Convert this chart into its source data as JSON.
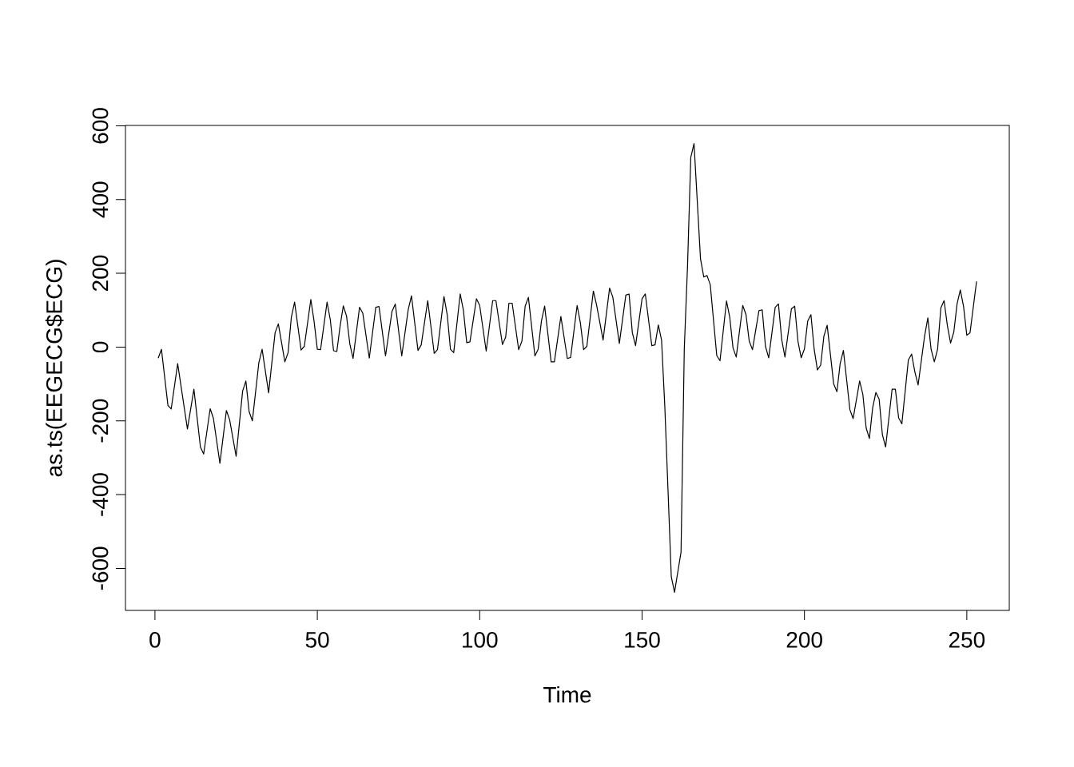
{
  "chart_data": {
    "type": "line",
    "xlabel": "Time",
    "ylabel": "as.ts(EEGECG$ECG)",
    "color": "#000000",
    "line_style": "solid",
    "x": [
      1,
      2,
      4,
      5,
      7,
      10,
      12,
      14,
      15,
      17,
      18,
      20,
      22,
      23,
      25,
      27,
      28,
      29,
      30,
      32,
      33,
      35,
      37,
      38,
      40,
      41,
      42,
      43,
      45,
      46,
      48,
      49,
      50,
      51,
      53,
      54,
      55,
      56,
      57,
      58,
      59,
      60,
      61,
      63,
      64,
      66,
      68,
      69,
      71,
      73,
      74,
      76,
      78,
      79,
      81,
      82,
      84,
      86,
      87,
      89,
      90,
      91,
      92,
      94,
      95,
      96,
      97,
      99,
      100,
      102,
      104,
      105,
      107,
      108,
      109,
      110,
      112,
      113,
      114,
      115,
      117,
      118,
      119,
      120,
      122,
      123,
      125,
      127,
      128,
      130,
      131,
      132,
      133,
      135,
      136,
      138,
      140,
      141,
      143,
      145,
      146,
      147,
      148,
      150,
      151,
      153,
      154,
      155,
      156,
      157,
      158,
      159,
      160,
      161,
      162,
      163,
      164,
      165,
      166,
      168,
      169,
      170,
      171,
      173,
      174,
      176,
      177,
      178,
      179,
      181,
      182,
      183,
      184,
      186,
      187,
      188,
      189,
      191,
      192,
      193,
      194,
      196,
      197,
      198,
      199,
      200,
      201,
      202,
      203,
      204,
      205,
      206,
      207,
      208,
      209,
      210,
      211,
      212,
      213,
      214,
      215,
      217,
      218,
      219,
      220,
      221,
      222,
      223,
      224,
      225,
      227,
      228,
      229,
      230,
      232,
      233,
      234,
      235,
      237,
      238,
      239,
      240,
      241,
      242,
      243,
      244,
      245,
      246,
      247,
      248,
      249,
      250,
      251,
      253
    ],
    "values": [
      -30,
      -6,
      -158,
      -168,
      -45,
      -222,
      -114,
      -271,
      -290,
      -167,
      -193,
      -315,
      -172,
      -197,
      -296,
      -119,
      -92,
      -175,
      -200,
      -42,
      -6,
      -124,
      39,
      63,
      -40,
      -15,
      81,
      122,
      -8,
      2,
      129,
      70,
      -6,
      -7,
      122,
      74,
      -10,
      -12,
      56,
      112,
      84,
      9,
      -31,
      108,
      92,
      -30,
      108,
      110,
      -24,
      97,
      117,
      -24,
      102,
      139,
      -9,
      6,
      126,
      -17,
      -7,
      137,
      88,
      -6,
      -15,
      144,
      99,
      12,
      14,
      131,
      113,
      -11,
      126,
      126,
      7,
      27,
      119,
      119,
      -7,
      16,
      111,
      135,
      -24,
      -6,
      70,
      111,
      -40,
      -40,
      83,
      -31,
      -28,
      113,
      66,
      -7,
      2,
      152,
      114,
      19,
      160,
      135,
      10,
      141,
      144,
      39,
      4,
      131,
      144,
      4,
      6,
      60,
      19,
      -160,
      -390,
      -623,
      -665,
      -610,
      -556,
      -6,
      220,
      514,
      552,
      239,
      190,
      194,
      169,
      -23,
      -37,
      125,
      81,
      -2,
      -27,
      113,
      88,
      16,
      -7,
      99,
      101,
      2,
      -29,
      108,
      117,
      20,
      -27,
      104,
      111,
      16,
      -29,
      -5,
      70,
      88,
      -6,
      -62,
      -49,
      30,
      59,
      -20,
      -100,
      -121,
      -45,
      -9,
      -89,
      -170,
      -194,
      -92,
      -129,
      -219,
      -248,
      -165,
      -123,
      -141,
      -237,
      -271,
      -114,
      -114,
      -192,
      -208,
      -35,
      -19,
      -67,
      -103,
      30,
      79,
      -6,
      -40,
      -6,
      106,
      126,
      59,
      11,
      41,
      117,
      155,
      110,
      32,
      39,
      178
    ],
    "xlim": [
      -9.08,
      263.08
    ],
    "ylim": [
      -714,
      601
    ],
    "xticks": [
      0,
      50,
      100,
      150,
      200,
      250
    ],
    "yticks": [
      -600,
      -400,
      -200,
      0,
      200,
      400,
      600
    ]
  }
}
